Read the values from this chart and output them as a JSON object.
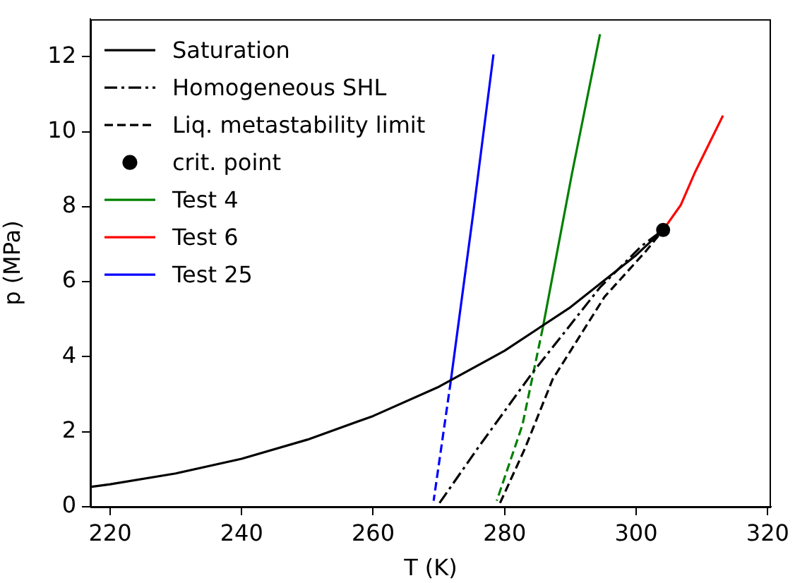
{
  "chart_data": {
    "type": "line",
    "xlabel": "T (K)",
    "ylabel": "p (MPa)",
    "xlim": [
      217,
      320.5
    ],
    "ylim": [
      0,
      13
    ],
    "xticks": [
      220,
      240,
      260,
      280,
      300,
      320
    ],
    "yticks": [
      0,
      2,
      4,
      6,
      8,
      10,
      12
    ],
    "grid": false,
    "legend": "top left",
    "marker": "none",
    "series": [
      {
        "name": "Saturation",
        "color": "#000000",
        "line_style": "solid",
        "x": [
          217,
          220,
          230,
          240,
          250,
          260,
          270,
          280,
          290,
          300,
          304.1
        ],
        "values": [
          0.53,
          0.6,
          0.89,
          1.28,
          1.79,
          2.42,
          3.2,
          4.16,
          5.32,
          6.71,
          7.38
        ]
      },
      {
        "name": "Homogeneous SHL",
        "color": "#000000",
        "line_style": "dashdot",
        "x": [
          270.1,
          275.9,
          284,
          294.5,
          300.8,
          304.1
        ],
        "values": [
          0.1,
          1.56,
          3.52,
          5.85,
          6.95,
          7.38
        ]
      },
      {
        "name": "Liq. metastability limit",
        "color": "#000000",
        "line_style": "dashed",
        "x": [
          279.3,
          283.1,
          287.3,
          295.2,
          301.4,
          304.1
        ],
        "values": [
          0.1,
          1.56,
          3.4,
          5.6,
          6.8,
          7.38
        ]
      },
      {
        "name": "crit. point",
        "type": "scatter",
        "marker": "circle",
        "color": "#000000",
        "x": [
          304.1
        ],
        "values": [
          7.38
        ]
      },
      {
        "name": "Test 4",
        "color": "#008000",
        "line_style": "solid",
        "x": [
          294.5,
          290.2,
          285.8
        ],
        "values": [
          12.6,
          8.85,
          4.77
        ]
      },
      {
        "color": "#008000",
        "line_style": "dashed",
        "x": [
          285.8,
          282.7,
          278.8
        ],
        "values": [
          4.77,
          2.18,
          0.16
        ]
      },
      {
        "name": "Test 6",
        "color": "#ff0000",
        "line_style": "solid",
        "x": [
          313.2,
          308.9,
          306.8,
          304.1
        ],
        "values": [
          10.43,
          8.9,
          8.05,
          7.38
        ]
      },
      {
        "name": "Test 25",
        "color": "#0000ff",
        "line_style": "solid",
        "x": [
          278.3,
          275.2,
          271.8
        ],
        "values": [
          12.06,
          7.8,
          3.34
        ]
      },
      {
        "color": "#0000ff",
        "line_style": "dashed",
        "x": [
          271.8,
          269.2
        ],
        "values": [
          3.34,
          0.16
        ]
      }
    ]
  }
}
